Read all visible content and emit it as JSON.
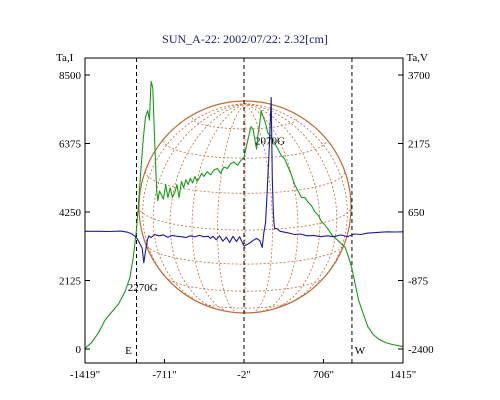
{
  "chart_data": {
    "type": "line",
    "title": "SUN_A-22: 2002/07/22: 2.32[cm]",
    "left_axis_label": "Ta,I",
    "right_axis_label": "Ta,V",
    "x_ticks": [
      {
        "value": -1419,
        "label": "-1419\""
      },
      {
        "value": -711,
        "label": "-711\""
      },
      {
        "value": -2,
        "label": "-2\""
      },
      {
        "value": 706,
        "label": "706\""
      },
      {
        "value": 1415,
        "label": "1415\""
      }
    ],
    "left_ticks": [
      {
        "value": 0,
        "label": "0"
      },
      {
        "value": 2125,
        "label": "2125"
      },
      {
        "value": 4250,
        "label": "4250"
      },
      {
        "value": 6375,
        "label": "6375"
      },
      {
        "value": 8500,
        "label": "8500"
      }
    ],
    "right_ticks": [
      {
        "value": -2400,
        "label": "-2400"
      },
      {
        "value": -875,
        "label": "-875"
      },
      {
        "value": 650,
        "label": "650"
      },
      {
        "value": 2175,
        "label": "2175"
      },
      {
        "value": 3700,
        "label": "3700"
      }
    ],
    "xlim": [
      -1419,
      1415
    ],
    "left_ylim": [
      0,
      8500
    ],
    "right_ylim": [
      -2400,
      3700
    ],
    "vertical_markers": [
      {
        "x": -960,
        "label": "E"
      },
      {
        "x": -2,
        "label": ""
      },
      {
        "x": 960,
        "label": "W"
      }
    ],
    "annotations": [
      {
        "text": "2270G",
        "x": -905,
        "y": 1800
      },
      {
        "text": "2070G",
        "x": 230,
        "y": 6350
      }
    ],
    "series": [
      {
        "axis": "left",
        "color": "#1a9a1a",
        "x": [
          -1419,
          -1360,
          -1300,
          -1240,
          -1180,
          -1120,
          -1060,
          -1020,
          -990,
          -960,
          -940,
          -920,
          -900,
          -880,
          -860,
          -845,
          -830,
          -815,
          -800,
          -790,
          -780,
          -770,
          -755,
          -740,
          -720,
          -700,
          -680,
          -660,
          -640,
          -620,
          -600,
          -580,
          -560,
          -540,
          -520,
          -500,
          -480,
          -460,
          -440,
          -420,
          -400,
          -380,
          -360,
          -330,
          -300,
          -270,
          -240,
          -210,
          -180,
          -150,
          -120,
          -90,
          -60,
          -30,
          -2,
          20,
          40,
          60,
          80,
          100,
          110,
          120,
          135,
          150,
          170,
          190,
          210,
          240,
          270,
          300,
          330,
          360,
          390,
          420,
          450,
          480,
          510,
          540,
          570,
          600,
          630,
          660,
          690,
          720,
          750,
          780,
          810,
          840,
          870,
          900,
          930,
          960,
          990,
          1020,
          1060,
          1100,
          1150,
          1200,
          1260,
          1320,
          1380,
          1415
        ],
        "y": [
          20,
          200,
          500,
          900,
          1150,
          1400,
          1800,
          2200,
          2800,
          3700,
          4600,
          5600,
          6500,
          7200,
          7400,
          7100,
          8300,
          8100,
          6600,
          5700,
          4900,
          4600,
          4900,
          4800,
          4650,
          5100,
          4700,
          5000,
          4700,
          4850,
          5100,
          4700,
          5200,
          5000,
          5250,
          5100,
          5300,
          5150,
          5350,
          5200,
          5300,
          5450,
          5350,
          5500,
          5400,
          5550,
          5600,
          5450,
          5650,
          5600,
          5750,
          5800,
          5700,
          5850,
          5950,
          6300,
          6600,
          6900,
          6800,
          6400,
          6200,
          6600,
          6900,
          7400,
          7200,
          7000,
          6700,
          6600,
          6400,
          6200,
          6000,
          5900,
          5650,
          5400,
          5100,
          4900,
          4700,
          4700,
          4550,
          4450,
          4250,
          4150,
          3950,
          3850,
          3700,
          3550,
          3450,
          3350,
          3250,
          3150,
          2850,
          2500,
          2000,
          1500,
          1100,
          700,
          450,
          300,
          200,
          140,
          100,
          70
        ]
      },
      {
        "axis": "right",
        "color": "#1a1a9a",
        "x": [
          -1419,
          -1300,
          -1200,
          -1100,
          -1040,
          -1000,
          -970,
          -950,
          -930,
          -910,
          -895,
          -880,
          -865,
          -850,
          -830,
          -800,
          -760,
          -720,
          -680,
          -640,
          -600,
          -560,
          -520,
          -480,
          -440,
          -400,
          -360,
          -320,
          -300,
          -280,
          -250,
          -220,
          -190,
          -160,
          -130,
          -100,
          -70,
          -40,
          -10,
          0,
          20,
          50,
          80,
          110,
          140,
          160,
          175,
          190,
          200,
          210,
          220,
          230,
          240,
          250,
          260,
          270,
          290,
          320,
          360,
          400,
          450,
          500,
          560,
          620,
          680,
          740,
          800,
          860,
          920,
          980,
          1040,
          1100,
          1160,
          1220,
          1280,
          1340,
          1415
        ],
        "y": [
          220,
          220,
          215,
          225,
          200,
          160,
          100,
          40,
          -60,
          -150,
          -480,
          -220,
          10,
          120,
          80,
          150,
          120,
          140,
          90,
          130,
          110,
          100,
          80,
          120,
          95,
          130,
          100,
          110,
          60,
          110,
          30,
          120,
          0,
          90,
          -30,
          110,
          -10,
          100,
          -70,
          -110,
          -80,
          -40,
          20,
          60,
          10,
          -140,
          200,
          400,
          900,
          1400,
          1900,
          2500,
          3200,
          1400,
          600,
          280,
          280,
          220,
          200,
          180,
          150,
          160,
          120,
          130,
          100,
          120,
          100,
          140,
          100,
          160,
          150,
          180,
          190,
          200,
          210,
          205,
          210
        ]
      }
    ]
  }
}
